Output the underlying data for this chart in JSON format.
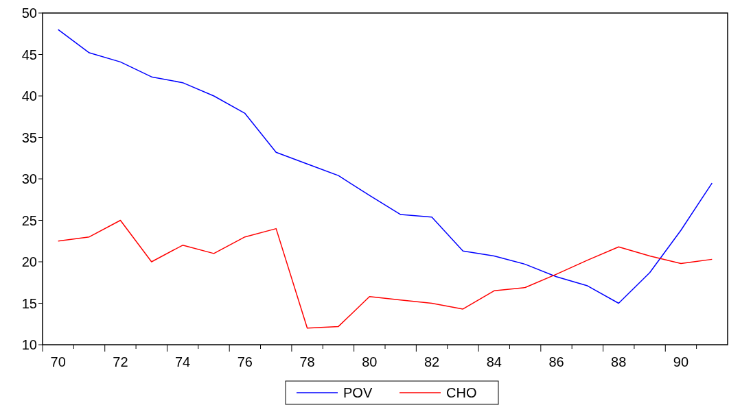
{
  "chart_data": {
    "type": "line",
    "categories": [
      "70",
      null,
      "72",
      null,
      "74",
      null,
      "76",
      null,
      "78",
      null,
      "80",
      null,
      "82",
      null,
      "84",
      null,
      "86",
      null,
      "88",
      null,
      "90",
      null
    ],
    "series": [
      {
        "name": "POV",
        "color": "#0000ff",
        "values": [
          48,
          45.2,
          44.1,
          42.3,
          41.6,
          40,
          37.9,
          33.2,
          31.8,
          30.4,
          28,
          25.7,
          25.4,
          21.3,
          20.7,
          19.7,
          18.2,
          17.1,
          15,
          18.7,
          23.8,
          29.5
        ]
      },
      {
        "name": "CHO",
        "color": "#ff0000",
        "values": [
          22.5,
          23,
          25,
          20,
          22,
          21,
          23,
          24,
          12,
          12.2,
          15.8,
          15.4,
          15,
          14.3,
          16.5,
          16.9,
          18.5,
          20.2,
          21.8,
          20.7,
          19.8,
          20.3
        ]
      }
    ],
    "ylim": [
      10,
      50
    ],
    "yticks": [
      10,
      15,
      20,
      25,
      30,
      35,
      40,
      45,
      50
    ],
    "grid": false,
    "legend": "bottom",
    "marker": "none",
    "line_style": "solid"
  }
}
